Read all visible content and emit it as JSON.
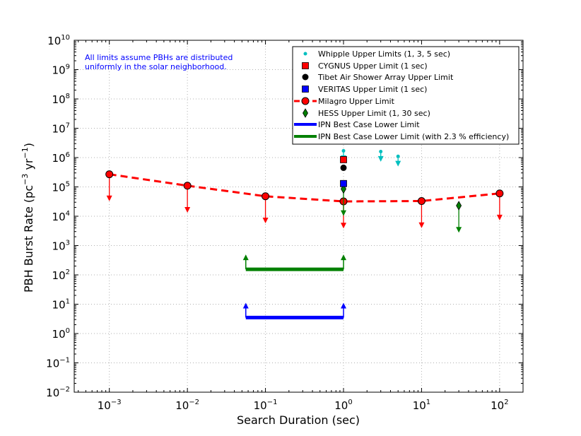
{
  "chart_data": {
    "type": "scatter",
    "xscale": "log",
    "yscale": "log",
    "xlim_exp": [
      -3.45,
      2.3
    ],
    "ylim_exp": [
      -2,
      10
    ],
    "x_tick_exponents": [
      -3,
      -2,
      -1,
      0,
      1,
      2
    ],
    "y_tick_exponents": [
      -2,
      -1,
      0,
      1,
      2,
      3,
      4,
      5,
      6,
      7,
      8,
      9,
      10
    ],
    "tick_base": "10",
    "xlabel": "Search Duration (sec)",
    "ylabel": {
      "prefix": "PBH Burst Rate (pc",
      "exp1": "−3",
      "mid": " yr",
      "exp2": "−1",
      "suffix": ")"
    },
    "grid": true,
    "annotation": [
      "All limits assume PBHs are distributed",
      "uniformly in the solar neighborhood."
    ],
    "legend_position": "top-right",
    "colors": {
      "whipple": "#00bfbf",
      "cygnus": "#ff0000",
      "tibet": "#000000",
      "veritas": "#0000ff",
      "milagro": "#ff0000",
      "hess": "#008000",
      "ipn": "#0000ff",
      "ipn_eff": "#008000",
      "annotation": "#0000ff"
    },
    "series": [
      {
        "id": "whipple",
        "name": "Whipple Upper Limits (1, 3, 5 sec)",
        "marker": "dot",
        "x": [
          1,
          3,
          5
        ],
        "y": [
          1700000,
          1600000,
          1100000
        ],
        "arrow_factor": 0.45
      },
      {
        "id": "cygnus",
        "name": "CYGNUS Upper Limit (1 sec)",
        "marker": "square",
        "x": [
          1
        ],
        "y": [
          850000
        ]
      },
      {
        "id": "tibet",
        "name": "Tibet Air Shower Array Upper Limit",
        "marker": "circle",
        "x": [
          1
        ],
        "y": [
          450000
        ]
      },
      {
        "id": "veritas",
        "name": "VERITAS Upper Limit (1 sec)",
        "marker": "square",
        "x": [
          1
        ],
        "y": [
          130000
        ]
      },
      {
        "id": "milagro",
        "name": "Milagro Upper Limit",
        "marker": "circle-dash",
        "x": [
          0.001,
          0.01,
          0.1,
          1,
          10,
          100
        ],
        "y": [
          270000,
          110000,
          48000,
          32000,
          33000,
          60000
        ],
        "arrow_factor": 0.12
      },
      {
        "id": "hess",
        "name": "HESS Upper Limit (1, 30 sec)",
        "marker": "diamond",
        "x": [
          1,
          30
        ],
        "y": [
          85000,
          23000
        ],
        "arrow_factor": 0.12
      },
      {
        "id": "ipn",
        "name": "IPN Best Case Lower Limit",
        "marker": "hline",
        "x": [
          0.056,
          1
        ],
        "y": [
          3.5,
          3.5
        ],
        "arrow_factor": 3.2
      },
      {
        "id": "ipn_eff",
        "name": "IPN Best Case Lower Limit (with 2.3 % efficiency)",
        "marker": "hline",
        "x": [
          0.056,
          1
        ],
        "y": [
          155,
          155
        ],
        "arrow_factor": 3.2
      }
    ]
  }
}
